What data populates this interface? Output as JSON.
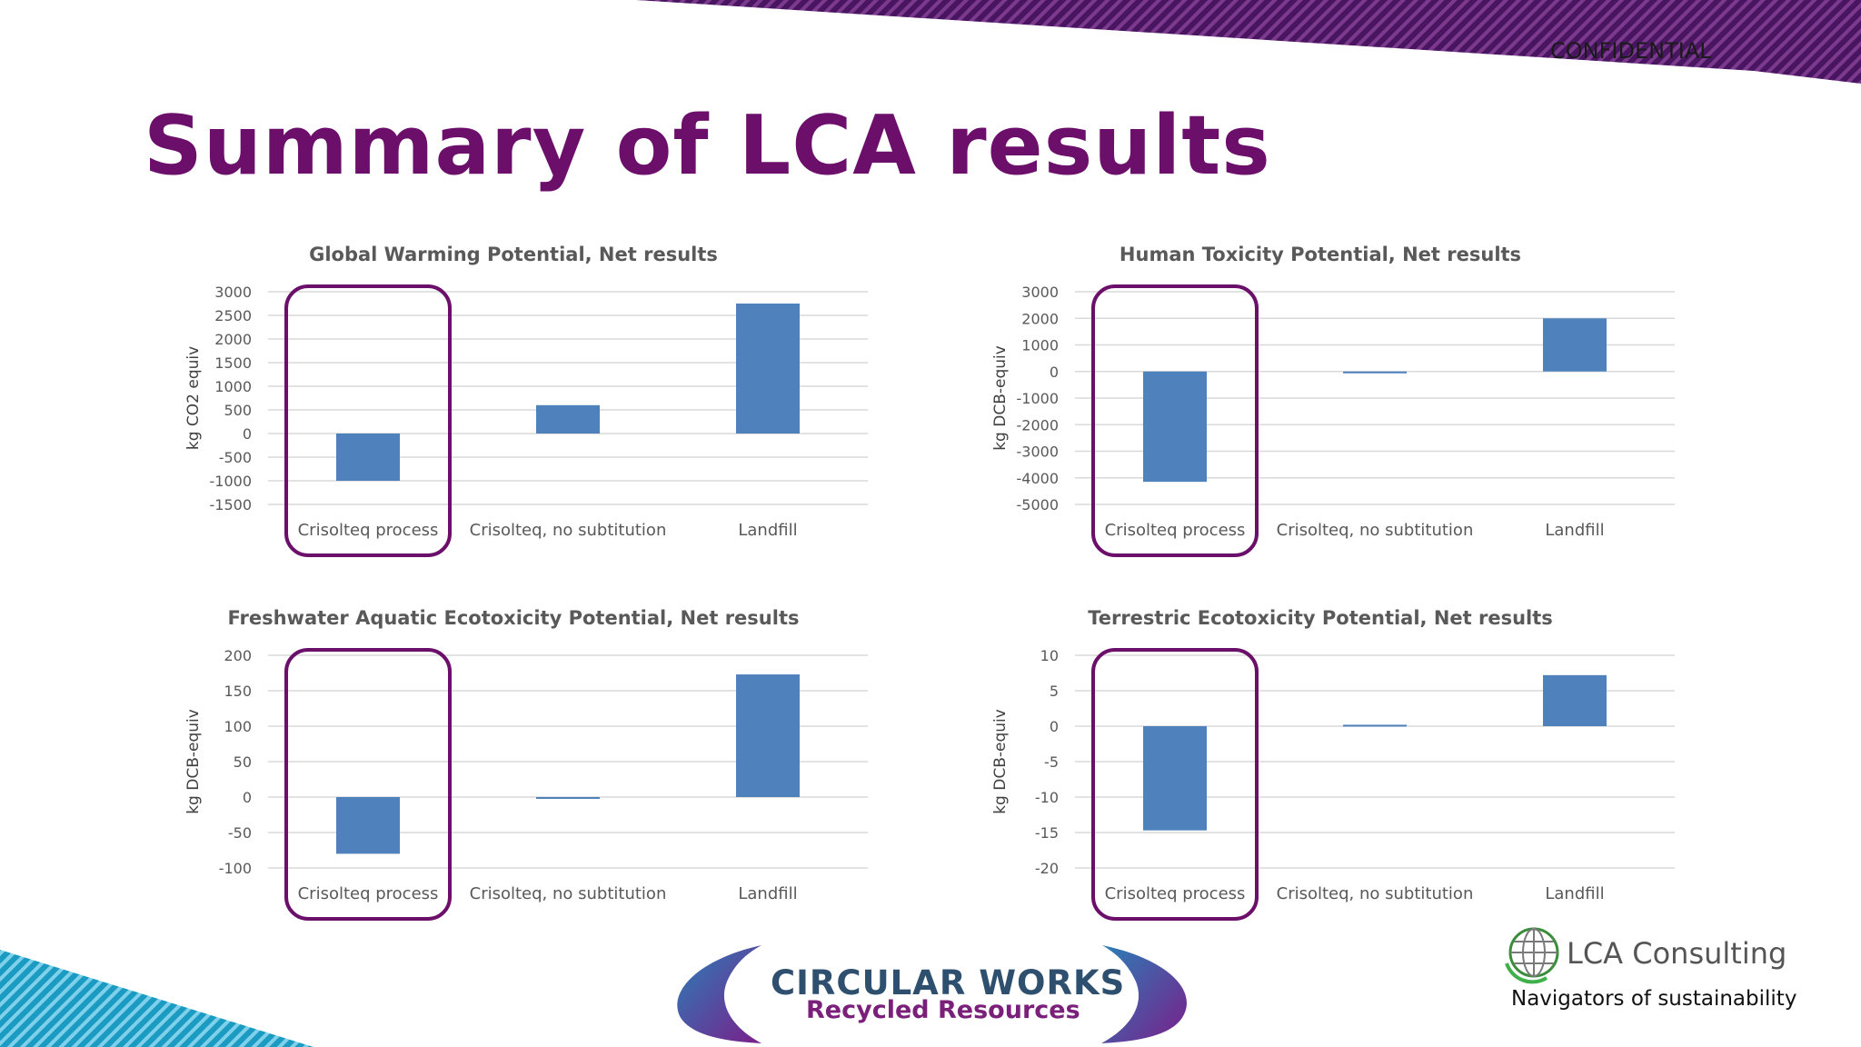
{
  "header": {
    "confidential": "CONFIDENTIAL",
    "title": "Summary of LCA results"
  },
  "colors": {
    "accent": "#6b0f6b",
    "bar": "#4f81bd",
    "stripe": "#5c1a6e",
    "teal": "#1b9bc2"
  },
  "chart_data": [
    {
      "type": "bar",
      "title": "Global Warming Potential, Net results",
      "ylabel": "kg CO2 equiv",
      "categories": [
        "Crisolteq process",
        "Crisolteq, no subtitution",
        "Landfill"
      ],
      "values": [
        -1000,
        600,
        2750
      ],
      "ylim": [
        -1500,
        3000
      ],
      "yticks": [
        3000,
        2500,
        2000,
        1500,
        1000,
        500,
        0,
        -500,
        -1000,
        -1500
      ],
      "highlight": "Crisolteq process"
    },
    {
      "type": "bar",
      "title": "Human Toxicity Potential, Net results",
      "ylabel": "kg DCB-equiv",
      "categories": [
        "Crisolteq process",
        "Crisolteq, no subtitution",
        "Landfill"
      ],
      "values": [
        -4150,
        0,
        2000
      ],
      "ylim": [
        -5000,
        3000
      ],
      "yticks": [
        3000,
        2000,
        1000,
        0,
        -1000,
        -2000,
        -3000,
        -4000,
        -5000
      ],
      "highlight": "Crisolteq process"
    },
    {
      "type": "bar",
      "title": "Freshwater Aquatic Ecotoxicity Potential, Net results",
      "ylabel": "kg DCB-equiv",
      "categories": [
        "Crisolteq process",
        "Crisolteq, no subtitution",
        "Landfill"
      ],
      "values": [
        -80,
        0,
        173
      ],
      "ylim": [
        -100,
        200
      ],
      "yticks": [
        200,
        150,
        100,
        50,
        0,
        -50,
        -100
      ],
      "highlight": "Crisolteq process"
    },
    {
      "type": "bar",
      "title": "Terrestric Ecotoxicity Potential, Net results",
      "ylabel": "kg DCB-equiv",
      "categories": [
        "Crisolteq process",
        "Crisolteq, no subtitution",
        "Landfill"
      ],
      "values": [
        -14.7,
        0.2,
        7.2
      ],
      "ylim": [
        -20,
        10
      ],
      "yticks": [
        10,
        5,
        0,
        -5,
        -10,
        -15,
        -20
      ],
      "highlight": "Crisolteq process"
    }
  ],
  "footer": {
    "circular_works": "CIRCULAR WORKS",
    "recycled": "Recycled Resources",
    "lca_brand": "LCA Consulting",
    "lca_tagline": "Navigators of sustainability"
  }
}
